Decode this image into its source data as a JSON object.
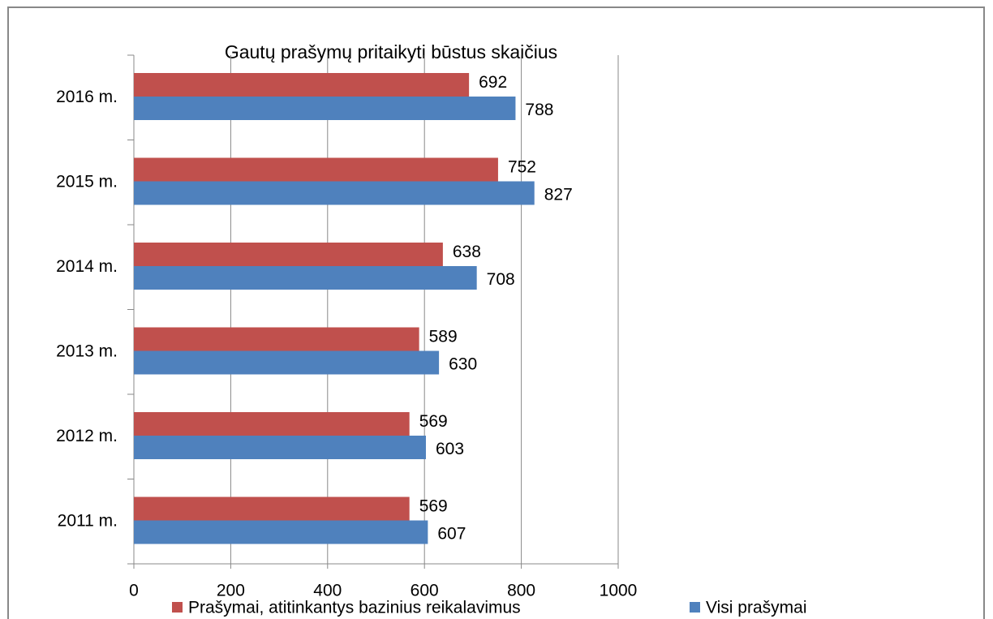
{
  "chart_data": {
    "type": "bar",
    "orientation": "horizontal",
    "title": "Gautų prašymų pritaikyti būstus skaičius",
    "categories": [
      "2011 m.",
      "2012 m.",
      "2013 m.",
      "2014 m.",
      "2015 m.",
      "2016 m."
    ],
    "series": [
      {
        "name": "Prašymai, atitinkantys bazinius reikalavimus",
        "color": "#c0504d",
        "values": [
          569,
          569,
          589,
          638,
          752,
          692
        ]
      },
      {
        "name": "Visi prašymai",
        "color": "#4f81bd",
        "values": [
          607,
          603,
          630,
          708,
          827,
          788
        ]
      }
    ],
    "xlim": [
      0,
      1000
    ],
    "xticks": [
      0,
      200,
      400,
      600,
      800,
      1000
    ],
    "grid": true,
    "legend": "bottom"
  }
}
